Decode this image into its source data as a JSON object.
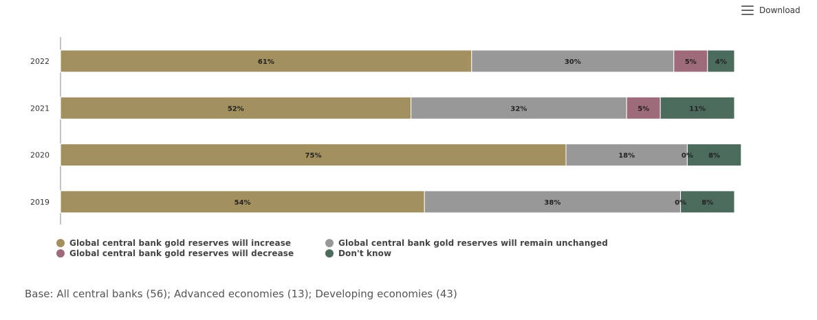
{
  "toolbar": {
    "download_label": "Download",
    "menu_icon": "hamburger-menu-icon"
  },
  "chart_data": {
    "type": "bar",
    "orientation": "horizontal",
    "stacked": true,
    "categories": [
      "2022",
      "2021",
      "2020",
      "2019"
    ],
    "xlim": [
      0,
      100
    ],
    "grid": false,
    "legend_position": "bottom-left",
    "series": [
      {
        "name": "Global central bank gold reserves will increase",
        "color": "#a3905f",
        "values": [
          61,
          52,
          75,
          54
        ],
        "labels": [
          "61%",
          "52%",
          "75%",
          "54%"
        ]
      },
      {
        "name": "Global central bank gold reserves will remain unchanged",
        "color": "#999899",
        "values": [
          30,
          32,
          18,
          38
        ],
        "labels": [
          "30%",
          "32%",
          "18%",
          "38%"
        ]
      },
      {
        "name": "Global central bank gold reserves will decrease",
        "color": "#9e6b7b",
        "values": [
          5,
          5,
          0,
          0
        ],
        "labels": [
          "5%",
          "5%",
          "0%",
          "0%"
        ]
      },
      {
        "name": "Don't know",
        "color": "#4b6b5d",
        "values": [
          4,
          11,
          8,
          8
        ],
        "labels": [
          "4%",
          "11%",
          "8%",
          "8%"
        ]
      }
    ]
  },
  "footnote": "Base: All central banks (56); Advanced economies (13); Developing economies (43)"
}
